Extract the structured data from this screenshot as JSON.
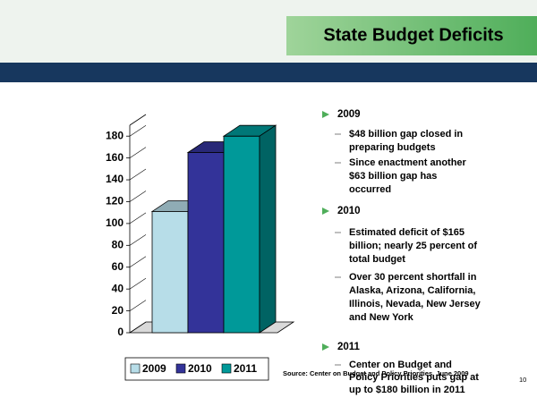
{
  "chart_data": {
    "type": "bar3d",
    "categories": [
      null
    ],
    "series": [
      {
        "name": "2009",
        "color": "#b7dde8",
        "values": [
          111
        ]
      },
      {
        "name": "2010",
        "color": "#333399",
        "values": [
          165
        ]
      },
      {
        "name": "2011",
        "color": "#009999",
        "values": [
          180
        ]
      }
    ],
    "ylim": [
      0,
      190
    ],
    "yticks": [
      0,
      20,
      40,
      60,
      80,
      100,
      120,
      140,
      160,
      180
    ],
    "legend": "bottom"
  },
  "title": "State Budget Deficits",
  "bullets": [
    {
      "heading": "2009",
      "items": [
        [
          "$48 billion gap closed in",
          "preparing budgets"
        ],
        [
          "Since enactment another",
          "$63 billion gap has",
          "occurred"
        ]
      ]
    },
    {
      "heading": "2010",
      "items": [
        [
          "Estimated deficit of $165",
          "billion; nearly 25 percent of",
          "total budget"
        ],
        [
          "Over 30 percent shortfall in",
          "Alaska, Arizona, California,",
          "Illinois, Nevada, New Jersey",
          "and New York"
        ]
      ]
    },
    {
      "heading": "2011",
      "items": [
        [
          "Center on Budget and",
          "Policy Priorities puts gap at",
          "up to $180 billion in 2011"
        ]
      ]
    }
  ],
  "source": "Source:  Center on Budget and Policy Priorities, June 2009",
  "page_number": "10"
}
